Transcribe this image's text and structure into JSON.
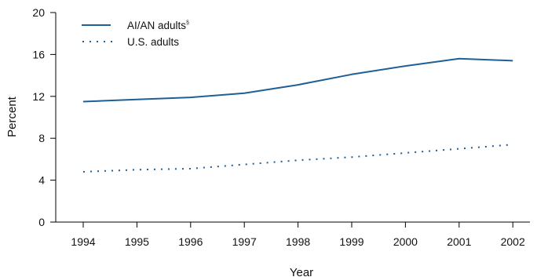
{
  "chart_data": {
    "type": "line",
    "title": "",
    "xlabel": "Year",
    "ylabel": "Percent",
    "x": [
      1994,
      1995,
      1996,
      1997,
      1998,
      1999,
      2000,
      2001,
      2002
    ],
    "xticks": [
      "1994",
      "1995",
      "1996",
      "1997",
      "1998",
      "1999",
      "2000",
      "2001",
      "2002"
    ],
    "yticks": [
      "0",
      "4",
      "8",
      "12",
      "16",
      "20"
    ],
    "ylim": [
      0,
      20
    ],
    "grid": false,
    "legend_position": "top-left",
    "series": [
      {
        "name": "AI/AN adults",
        "name_superscript": "§",
        "style": "solid",
        "color": "#1f5f95",
        "values": [
          11.5,
          11.7,
          11.9,
          12.3,
          13.1,
          14.1,
          14.9,
          15.6,
          15.4
        ]
      },
      {
        "name": "U.S. adults",
        "style": "dotted",
        "color": "#1f5f95",
        "values": [
          4.8,
          5.0,
          5.1,
          5.5,
          5.9,
          6.2,
          6.6,
          7.0,
          7.4
        ]
      }
    ]
  }
}
